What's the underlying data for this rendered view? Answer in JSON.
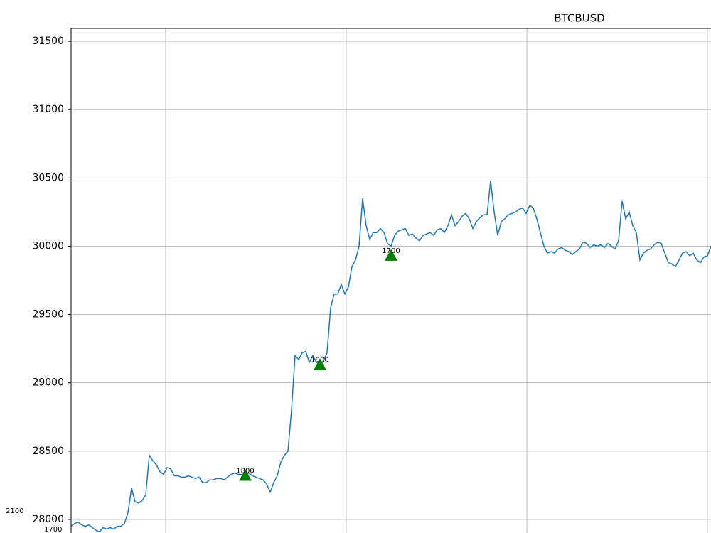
{
  "chart_data": {
    "type": "line",
    "title": "BTCBUSD",
    "series": [
      {
        "color": "#1f77b4",
        "values": [
          27950,
          27970,
          27980,
          27960,
          27950,
          27960,
          27940,
          27920,
          27910,
          27940,
          27930,
          27940,
          27930,
          27950,
          27950,
          27970,
          28050,
          28230,
          28130,
          28120,
          28140,
          28180,
          28470,
          28430,
          28400,
          28350,
          28330,
          28380,
          28370,
          28320,
          28320,
          28310,
          28310,
          28320,
          28310,
          28300,
          28310,
          28270,
          28270,
          28290,
          28290,
          28300,
          28300,
          28290,
          28310,
          28330,
          28340,
          28330,
          28330,
          28320,
          28340,
          28320,
          28310,
          28300,
          28290,
          28260,
          28200,
          28270,
          28320,
          28420,
          28470,
          28500,
          28800,
          29200,
          29170,
          29220,
          29230,
          29150,
          29200,
          29150,
          29130,
          29160,
          29220,
          29550,
          29650,
          29650,
          29720,
          29650,
          29700,
          29850,
          29900,
          30000,
          30350,
          30150,
          30050,
          30100,
          30100,
          30130,
          30100,
          30020,
          30000,
          30080,
          30110,
          30120,
          30130,
          30080,
          30090,
          30060,
          30040,
          30080,
          30090,
          30100,
          30080,
          30120,
          30130,
          30100,
          30150,
          30230,
          30150,
          30180,
          30220,
          30240,
          30200,
          30130,
          30180,
          30210,
          30230,
          30230,
          30480,
          30250,
          30080,
          30180,
          30200,
          30230,
          30240,
          30250,
          30270,
          30280,
          30240,
          30300,
          30280,
          30200,
          30100,
          30000,
          29950,
          29960,
          29950,
          29980,
          29990,
          29970,
          29960,
          29940,
          29960,
          29980,
          30030,
          30020,
          29990,
          30010,
          30000,
          30010,
          29990,
          30020,
          30000,
          29980,
          30040,
          30330,
          30200,
          30250,
          30150,
          30100,
          29900,
          29950,
          29970,
          29980,
          30010,
          30030,
          30020,
          29950,
          29880,
          29870,
          29850,
          29900,
          29950,
          29960,
          29930,
          29950,
          29900,
          29880,
          29920,
          29930,
          30000
        ]
      }
    ],
    "markers": {
      "color": "#008000",
      "x": [
        49,
        70,
        90
      ],
      "values": [
        28320,
        29130,
        29930
      ],
      "labels": [
        "1800",
        "1900",
        "1700"
      ]
    },
    "annotations": [
      "2100",
      "1700"
    ],
    "xlim": [
      0,
      180
    ],
    "ylim": [
      27901,
      31594
    ],
    "yticks": [
      28000,
      28500,
      29000,
      29500,
      30000,
      30500,
      31000,
      31500
    ],
    "grid": true
  }
}
